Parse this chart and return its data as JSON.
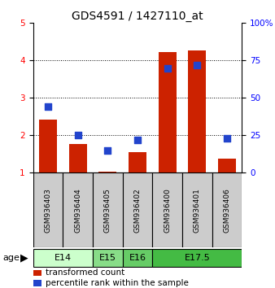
{
  "title": "GDS4591 / 1427110_at",
  "samples": [
    "GSM936403",
    "GSM936404",
    "GSM936405",
    "GSM936402",
    "GSM936400",
    "GSM936401",
    "GSM936406"
  ],
  "transformed_count": [
    2.42,
    1.78,
    1.02,
    1.55,
    4.22,
    4.27,
    1.38
  ],
  "percentile_rank": [
    44,
    25,
    15,
    22,
    70,
    72,
    23
  ],
  "age_groups": [
    {
      "label": "E14",
      "spans": [
        0,
        1
      ],
      "color": "#ccffcc"
    },
    {
      "label": "E15",
      "spans": [
        2,
        2
      ],
      "color": "#88dd88"
    },
    {
      "label": "E16",
      "spans": [
        3,
        3
      ],
      "color": "#66cc66"
    },
    {
      "label": "E17.5",
      "spans": [
        4,
        6
      ],
      "color": "#44bb44"
    }
  ],
  "ylim_left": [
    1,
    5
  ],
  "ylim_right": [
    0,
    100
  ],
  "yticks_left": [
    1,
    2,
    3,
    4,
    5
  ],
  "yticks_right": [
    0,
    25,
    50,
    75,
    100
  ],
  "bar_color": "#cc2200",
  "dot_color": "#2244cc",
  "bg_color": "#ffffff",
  "sample_bg_color": "#cccccc",
  "title_fontsize": 10,
  "tick_fontsize": 7.5,
  "label_fontsize": 7.5
}
